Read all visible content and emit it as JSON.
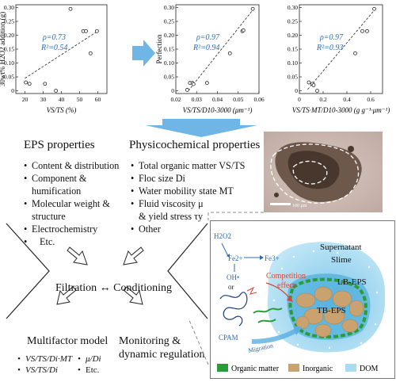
{
  "chart_data": [
    {
      "type": "scatter",
      "ylabel": "30wt% H2O2 addition (g)",
      "xlabel": "VS/TS (%)",
      "xlim": [
        15,
        65
      ],
      "ylim": [
        -0.01,
        0.31
      ],
      "xticks": [
        "20",
        "30",
        "40",
        "50",
        "60"
      ],
      "yticks": [
        "0",
        "0.05",
        "0.10",
        "0.15",
        "0.20",
        "0.25",
        "0.30"
      ],
      "rho": "ρ=0.73",
      "r2": "R²=0.54",
      "points": [
        [
          20.5,
          0.03
        ],
        [
          22.5,
          0.025
        ],
        [
          31,
          0.025
        ],
        [
          37,
          0.0
        ],
        [
          45,
          0.295
        ],
        [
          52,
          0.215
        ],
        [
          53.5,
          0.215
        ],
        [
          56,
          0.135
        ],
        [
          59.5,
          0.215
        ]
      ],
      "fit": [
        [
          20,
          0.045
        ],
        [
          60,
          0.215
        ]
      ]
    },
    {
      "type": "scatter",
      "ylabel": "Perfection",
      "xlabel": "VS/TS/D10-3000 (μm⁻¹)",
      "xlim": [
        0.02,
        0.06
      ],
      "ylim": [
        -0.01,
        0.31
      ],
      "xticks": [
        "0.02",
        "0.03",
        "0.04",
        "0.05",
        "0.06"
      ],
      "yticks": [
        "0",
        "0.05",
        "0.10",
        "0.15",
        "0.20",
        "0.25",
        "0.30"
      ],
      "rho": "ρ=0.97",
      "r2": "R²=0.94",
      "points": [
        [
          0.0255,
          0.003
        ],
        [
          0.0268,
          0.028
        ],
        [
          0.028,
          0.028
        ],
        [
          0.0285,
          0.024
        ],
        [
          0.035,
          0.028
        ],
        [
          0.046,
          0.135
        ],
        [
          0.052,
          0.215
        ],
        [
          0.0525,
          0.218
        ],
        [
          0.057,
          0.295
        ]
      ],
      "fit": [
        [
          0.026,
          0.0
        ],
        [
          0.058,
          0.3
        ]
      ]
    },
    {
      "type": "scatter",
      "xlabel": "VS/TS·MT/D10-3000 (g g⁻¹·μm⁻¹)",
      "xlim": [
        0,
        0.7
      ],
      "ylim": [
        -0.01,
        0.31
      ],
      "xticks": [
        "0",
        "0.2",
        "0.4",
        "0.6"
      ],
      "yticks": [
        "0",
        "0.05",
        "0.10",
        "0.15",
        "0.20",
        "0.25",
        "0.30"
      ],
      "rho": "ρ=0.97",
      "r2": "R²=0.93",
      "points": [
        [
          0.08,
          0.03
        ],
        [
          0.11,
          0.025
        ],
        [
          0.12,
          0.02
        ],
        [
          0.15,
          0.0
        ],
        [
          0.47,
          0.135
        ],
        [
          0.53,
          0.215
        ],
        [
          0.57,
          0.215
        ],
        [
          0.63,
          0.295
        ]
      ],
      "fit": [
        [
          0.07,
          0.005
        ],
        [
          0.65,
          0.3
        ]
      ]
    }
  ],
  "eps": {
    "title": "EPS properties",
    "items": [
      "Content & distribution",
      "Component &",
      "humification",
      "Molecular weight &",
      "structure",
      "Electrochemistry",
      "Etc."
    ]
  },
  "phys": {
    "title": "Physicochemical properties",
    "items": [
      "Total organic matter VS/TS",
      "Floc size Di",
      "Water mobility state MT",
      "Fluid viscosity μ",
      "& yield stress τy",
      "Other"
    ]
  },
  "process": {
    "filtration": "Filtration",
    "arrow": "↔",
    "conditioning": "Conditioning"
  },
  "outcomes": {
    "model": "Multifactor model",
    "monitor_line1": "Monitoring  &",
    "monitor_line2": "dynamic regulation",
    "model_items": [
      "VS/TS/Di·MT",
      "VS/TS/Di"
    ],
    "model_items2": [
      "μ/Di",
      "Etc."
    ]
  },
  "micro": {
    "scale": "100 μm"
  },
  "schematic": {
    "h2o2": "H2O2",
    "fe2": "Fe2+",
    "fe3": "Fe3+",
    "oh": "OH•",
    "or": "or",
    "cpam": "CPAM",
    "competition1": "Competition",
    "competition2": "effect",
    "migration": "Migration",
    "supernatant": "Supernatant",
    "slime": "Slime",
    "lbeps": "LB-EPS",
    "tbeps": "TB-EPS",
    "legend": [
      "Organic matter",
      "Inorganic",
      "DOM"
    ],
    "colors": {
      "organic": "#2a9d3a",
      "inorganic": "#c9a270",
      "dom": "#a9dcf2",
      "competition": "#d9453a",
      "text_blue": "#2b6cb0"
    }
  }
}
